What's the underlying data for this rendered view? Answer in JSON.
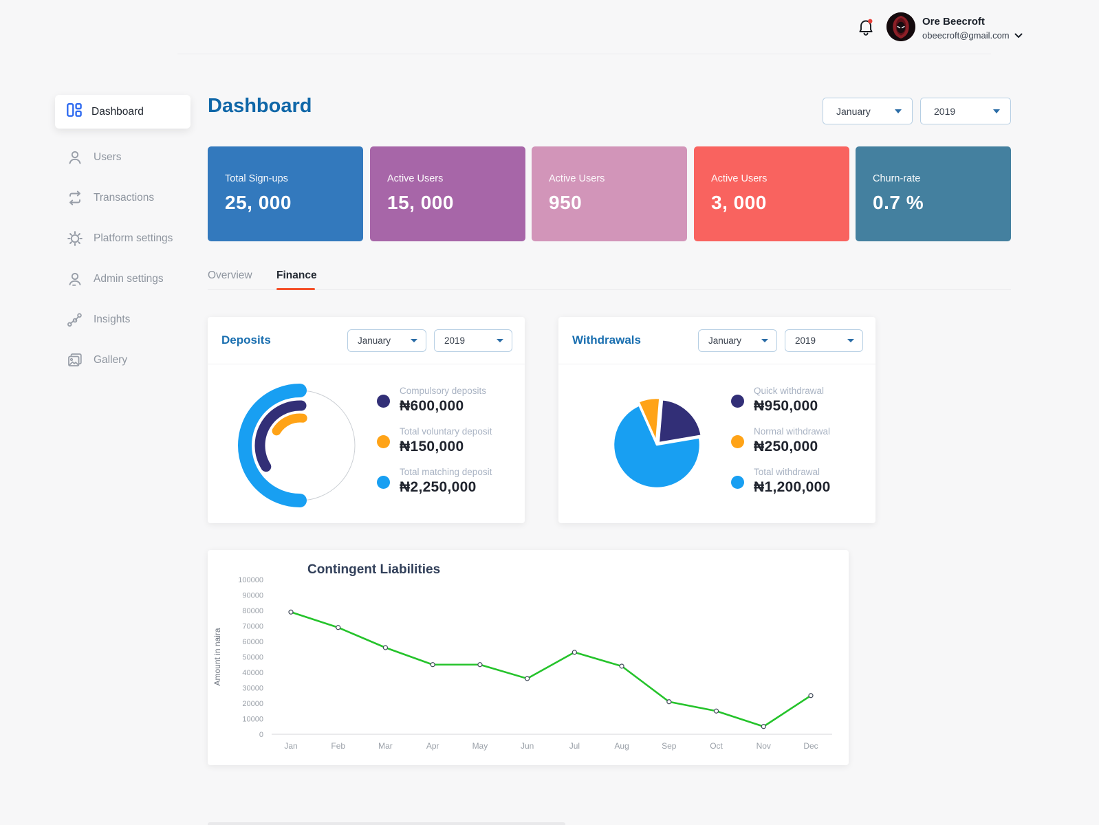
{
  "topbar": {
    "user_name": "Ore Beecroft",
    "user_email": "obeecroft@gmail.com"
  },
  "sidebar": {
    "items": [
      {
        "label": "Dashboard",
        "icon": "dashboard-icon",
        "active": true
      },
      {
        "label": "Users",
        "icon": "users-icon",
        "active": false
      },
      {
        "label": "Transactions",
        "icon": "transactions-icon",
        "active": false
      },
      {
        "label": "Platform settings",
        "icon": "gear-icon",
        "active": false
      },
      {
        "label": "Admin settings",
        "icon": "admin-icon",
        "active": false
      },
      {
        "label": "Insights",
        "icon": "insights-icon",
        "active": false
      },
      {
        "label": "Gallery",
        "icon": "gallery-icon",
        "active": false
      }
    ]
  },
  "page": {
    "title": "Dashboard"
  },
  "filters": {
    "top": {
      "month": "January",
      "year": "2019"
    },
    "deposits": {
      "month": "January",
      "year": "2019"
    },
    "withdrawals": {
      "month": "January",
      "year": "2019"
    }
  },
  "stat_cards": [
    {
      "label": "Total Sign-ups",
      "value": "25, 000",
      "color": "#3379bd"
    },
    {
      "label": "Active Users",
      "value": "15, 000",
      "color": "#a766a8"
    },
    {
      "label": "Active Users",
      "value": "950",
      "color": "#d295b9"
    },
    {
      "label": "Active Users",
      "value": "3, 000",
      "color": "#f9635f"
    },
    {
      "label": "Churn-rate",
      "value": "0.7 %",
      "color": "#44809f"
    }
  ],
  "tabs": [
    {
      "label": "Overview",
      "active": false
    },
    {
      "label": "Finance",
      "active": true
    }
  ],
  "panels": {
    "deposits_title": "Deposits",
    "withdrawals_title": "Withdrawals"
  },
  "chart_data": [
    {
      "name": "deposits",
      "type": "donut",
      "title": "Deposits",
      "legend_position": "right",
      "legend": [
        {
          "label": "Compulsory deposits",
          "value": "₦600,000",
          "value_numeric": 600000,
          "color": "#322f77",
          "arc_start_deg": 88,
          "arc_end_deg": 212
        },
        {
          "label": "Total voluntary deposit",
          "value": "₦150,000",
          "value_numeric": 150000,
          "color": "#ffa317",
          "arc_start_deg": 84,
          "arc_end_deg": 148
        },
        {
          "label": "Total matching deposit",
          "value": "₦2,250,000",
          "value_numeric": 2250000,
          "color": "#189ff2",
          "arc_start_deg": 90,
          "arc_end_deg": 270
        }
      ]
    },
    {
      "name": "withdrawals",
      "type": "pie",
      "title": "Withdrawals",
      "legend_position": "right",
      "legend": [
        {
          "label": "Quick withdrawal",
          "value": "₦950,000",
          "value_numeric": 950000,
          "color": "#322f77",
          "visual_fraction": 0.21
        },
        {
          "label": "Normal withdrawal",
          "value": "₦250,000",
          "value_numeric": 250000,
          "color": "#ffa317",
          "visual_fraction": 0.08
        },
        {
          "label": "Total withdrawal",
          "value": "₦1,200,000",
          "value_numeric": 1200000,
          "color": "#189ff2",
          "visual_fraction": 0.71
        }
      ]
    },
    {
      "name": "contingent_liabilities",
      "type": "line",
      "title": "Contingent Liabilities",
      "xlabel": "",
      "ylabel": "Amount in naira",
      "ylim": [
        0,
        100000
      ],
      "ytick_step": 10000,
      "grid": false,
      "categories": [
        "Jan",
        "Feb",
        "Mar",
        "Apr",
        "May",
        "Jun",
        "Jul",
        "Aug",
        "Sep",
        "Oct",
        "Nov",
        "Dec"
      ],
      "values": [
        79000,
        69000,
        56000,
        45000,
        45000,
        36000,
        53000,
        44000,
        21000,
        15000,
        5000,
        25000
      ],
      "line_color": "#25c32b"
    }
  ]
}
